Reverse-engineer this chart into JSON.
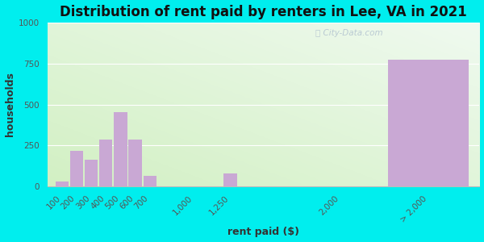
{
  "title": "Distribution of rent paid by renters in Lee, VA in 2021",
  "xlabel": "rent paid ($)",
  "ylabel": "households",
  "bar_labels": [
    "100",
    "200",
    "300",
    "400",
    "500",
    "600",
    "700",
    "1,000",
    "1,250",
    "2,000",
    "> 2,000"
  ],
  "bar_values": [
    30,
    215,
    165,
    285,
    455,
    285,
    65,
    0,
    80,
    0,
    775
  ],
  "bar_color": "#c9a8d4",
  "bg_color_outer": "#00eeee",
  "ylim": [
    0,
    1000
  ],
  "yticks": [
    0,
    250,
    500,
    750,
    1000
  ],
  "title_fontsize": 12,
  "axis_label_fontsize": 9,
  "tick_fontsize": 7.5,
  "watermark": "City-Data.com"
}
